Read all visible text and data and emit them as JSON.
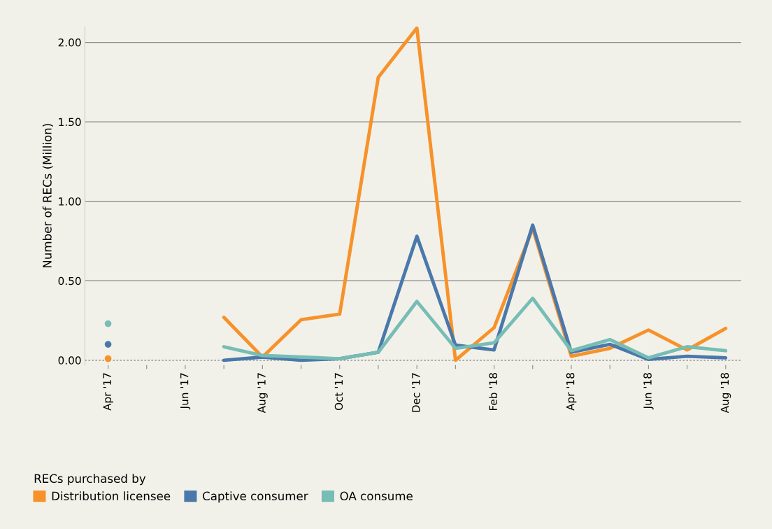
{
  "chart_data": {
    "type": "line",
    "ylabel": "Number of RECs (Million)",
    "legend_title": "RECs purchased by",
    "legend": "bottom left",
    "grid": "y",
    "line_style": "solid",
    "categories": [
      "Apr '17",
      null,
      "Jun '17",
      null,
      "Aug '17",
      null,
      "Oct '17",
      null,
      "Dec '17",
      null,
      "Feb '18",
      null,
      "Apr '18",
      null,
      "Jun '18",
      null,
      "Aug '18"
    ],
    "ylim": [
      -0.03,
      2.1
    ],
    "ref_lines": [
      {
        "axis": "y",
        "value": 0,
        "line_style": "dotted",
        "color": "#777777"
      }
    ],
    "yticks": [
      {
        "value": 0,
        "label": "0.00"
      },
      {
        "value": 0.5,
        "label": "0.50"
      },
      {
        "value": 1,
        "label": "1.00"
      },
      {
        "value": 1.5,
        "label": "1.50"
      },
      {
        "value": 2,
        "label": "2.00"
      }
    ],
    "series": [
      {
        "name": "Distribution licensee",
        "color": "#f7922a",
        "values": [
          0.01,
          null,
          null,
          0.27,
          0.02,
          0.255,
          0.29,
          1.78,
          2.09,
          0.0,
          0.205,
          0.83,
          0.025,
          0.075,
          0.19,
          0.065,
          0.2
        ]
      },
      {
        "name": "Captive consumer",
        "color": "#4a78ab",
        "values": [
          0.1,
          null,
          null,
          0.0,
          0.02,
          0.0,
          0.01,
          0.05,
          0.78,
          0.095,
          0.065,
          0.85,
          0.05,
          0.1,
          0.005,
          0.025,
          0.015
        ]
      },
      {
        "name": "OA consume",
        "color": "#76bdb5",
        "values": [
          0.23,
          null,
          null,
          0.085,
          0.03,
          0.02,
          0.01,
          0.05,
          0.37,
          0.075,
          0.11,
          0.39,
          0.06,
          0.13,
          0.015,
          0.085,
          0.06
        ]
      }
    ]
  }
}
